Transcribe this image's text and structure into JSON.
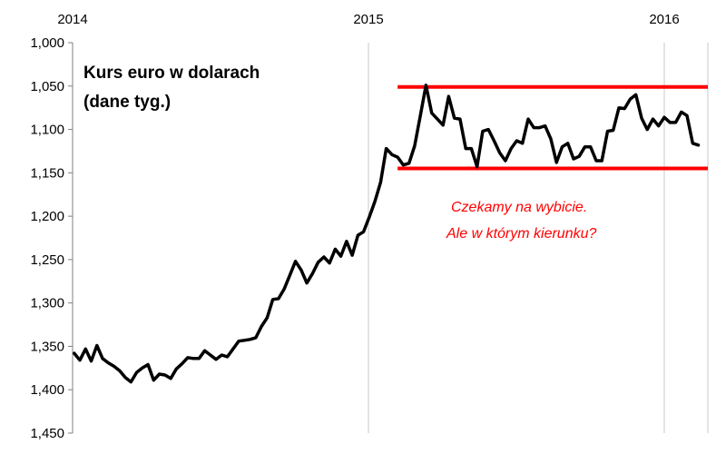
{
  "chart_data": {
    "type": "line",
    "title_lines": [
      "Kurs euro w dolarach",
      "(dane tyg.)"
    ],
    "y_axis": {
      "inverted": true,
      "ylim": [
        1.0,
        1.45
      ],
      "ticks": [
        1.0,
        1.05,
        1.1,
        1.15,
        1.2,
        1.25,
        1.3,
        1.35,
        1.4,
        1.45
      ],
      "tick_labels": [
        "1,000",
        "1,050",
        "1,100",
        "1,150",
        "1,200",
        "1,250",
        "1,300",
        "1,350",
        "1,400",
        "1,450"
      ]
    },
    "x_axis": {
      "position": "top",
      "start": "2014-01-01",
      "end": "2016-02-29",
      "ticks": [
        "2014-01-01",
        "2015-01-01",
        "2016-01-01"
      ],
      "tick_labels": [
        "2014",
        "2015",
        "2016"
      ]
    },
    "grid": {
      "vertical": true,
      "horizontal": false,
      "color": "#c8c8c8"
    },
    "series": [
      {
        "color": "#000000",
        "points": [
          [
            "2014-01-03",
            1.358
          ],
          [
            "2014-01-10",
            1.366
          ],
          [
            "2014-01-17",
            1.353
          ],
          [
            "2014-01-24",
            1.367
          ],
          [
            "2014-01-31",
            1.349
          ],
          [
            "2014-02-07",
            1.364
          ],
          [
            "2014-02-14",
            1.369
          ],
          [
            "2014-02-21",
            1.373
          ],
          [
            "2014-02-28",
            1.378
          ],
          [
            "2014-03-07",
            1.386
          ],
          [
            "2014-03-14",
            1.391
          ],
          [
            "2014-03-21",
            1.38
          ],
          [
            "2014-03-28",
            1.375
          ],
          [
            "2014-04-04",
            1.371
          ],
          [
            "2014-04-11",
            1.389
          ],
          [
            "2014-04-18",
            1.382
          ],
          [
            "2014-04-25",
            1.383
          ],
          [
            "2014-05-02",
            1.387
          ],
          [
            "2014-05-09",
            1.376
          ],
          [
            "2014-05-16",
            1.37
          ],
          [
            "2014-05-23",
            1.363
          ],
          [
            "2014-05-30",
            1.364
          ],
          [
            "2014-06-06",
            1.364
          ],
          [
            "2014-06-13",
            1.355
          ],
          [
            "2014-06-20",
            1.36
          ],
          [
            "2014-06-27",
            1.365
          ],
          [
            "2014-07-04",
            1.36
          ],
          [
            "2014-07-11",
            1.362
          ],
          [
            "2014-07-18",
            1.353
          ],
          [
            "2014-07-25",
            1.344
          ],
          [
            "2014-08-01",
            1.343
          ],
          [
            "2014-08-08",
            1.342
          ],
          [
            "2014-08-15",
            1.34
          ],
          [
            "2014-08-22",
            1.327
          ],
          [
            "2014-08-29",
            1.317
          ],
          [
            "2014-09-05",
            1.296
          ],
          [
            "2014-09-12",
            1.295
          ],
          [
            "2014-09-19",
            1.284
          ],
          [
            "2014-09-26",
            1.268
          ],
          [
            "2014-10-03",
            1.252
          ],
          [
            "2014-10-10",
            1.262
          ],
          [
            "2014-10-17",
            1.277
          ],
          [
            "2014-10-24",
            1.266
          ],
          [
            "2014-10-31",
            1.253
          ],
          [
            "2014-11-07",
            1.247
          ],
          [
            "2014-11-14",
            1.254
          ],
          [
            "2014-11-21",
            1.238
          ],
          [
            "2014-11-28",
            1.246
          ],
          [
            "2014-12-05",
            1.229
          ],
          [
            "2014-12-12",
            1.245
          ],
          [
            "2014-12-19",
            1.222
          ],
          [
            "2014-12-26",
            1.218
          ],
          [
            "2015-01-02",
            1.201
          ],
          [
            "2015-01-09",
            1.183
          ],
          [
            "2015-01-16",
            1.161
          ],
          [
            "2015-01-23",
            1.122
          ],
          [
            "2015-01-30",
            1.129
          ],
          [
            "2015-02-06",
            1.132
          ],
          [
            "2015-02-13",
            1.141
          ],
          [
            "2015-02-20",
            1.139
          ],
          [
            "2015-02-27",
            1.119
          ],
          [
            "2015-03-06",
            1.084
          ],
          [
            "2015-03-13",
            1.049
          ],
          [
            "2015-03-20",
            1.081
          ],
          [
            "2015-03-27",
            1.088
          ],
          [
            "2015-04-03",
            1.095
          ],
          [
            "2015-04-10",
            1.062
          ],
          [
            "2015-04-17",
            1.087
          ],
          [
            "2015-04-24",
            1.088
          ],
          [
            "2015-05-01",
            1.122
          ],
          [
            "2015-05-08",
            1.122
          ],
          [
            "2015-05-15",
            1.143
          ],
          [
            "2015-05-22",
            1.102
          ],
          [
            "2015-05-29",
            1.1
          ],
          [
            "2015-06-05",
            1.113
          ],
          [
            "2015-06-12",
            1.127
          ],
          [
            "2015-06-19",
            1.136
          ],
          [
            "2015-06-26",
            1.122
          ],
          [
            "2015-07-03",
            1.113
          ],
          [
            "2015-07-10",
            1.116
          ],
          [
            "2015-07-17",
            1.088
          ],
          [
            "2015-07-24",
            1.098
          ],
          [
            "2015-07-31",
            1.098
          ],
          [
            "2015-08-07",
            1.096
          ],
          [
            "2015-08-14",
            1.111
          ],
          [
            "2015-08-21",
            1.138
          ],
          [
            "2015-08-28",
            1.12
          ],
          [
            "2015-09-04",
            1.116
          ],
          [
            "2015-09-11",
            1.134
          ],
          [
            "2015-09-18",
            1.131
          ],
          [
            "2015-09-25",
            1.12
          ],
          [
            "2015-10-02",
            1.12
          ],
          [
            "2015-10-09",
            1.136
          ],
          [
            "2015-10-16",
            1.136
          ],
          [
            "2015-10-23",
            1.102
          ],
          [
            "2015-10-30",
            1.101
          ],
          [
            "2015-11-06",
            1.075
          ],
          [
            "2015-11-13",
            1.076
          ],
          [
            "2015-11-20",
            1.065
          ],
          [
            "2015-11-27",
            1.06
          ],
          [
            "2015-12-04",
            1.087
          ],
          [
            "2015-12-11",
            1.1
          ],
          [
            "2015-12-18",
            1.088
          ],
          [
            "2015-12-25",
            1.096
          ],
          [
            "2016-01-01",
            1.086
          ],
          [
            "2016-01-08",
            1.092
          ],
          [
            "2016-01-15",
            1.092
          ],
          [
            "2016-01-22",
            1.08
          ],
          [
            "2016-01-29",
            1.084
          ],
          [
            "2016-02-05",
            1.116
          ],
          [
            "2016-02-12",
            1.118
          ]
        ]
      }
    ],
    "reference_lines": [
      {
        "y": 1.051,
        "x_start": "2015-02-06",
        "x_end": "2016-02-29",
        "color": "#ff0000"
      },
      {
        "y": 1.145,
        "x_start": "2015-02-06",
        "x_end": "2016-02-29",
        "color": "#ff0000"
      }
    ],
    "annotation": {
      "lines": [
        "Czekamy na wybicie.",
        "Ale w którym kierunku?"
      ],
      "color": "#ff0000"
    }
  }
}
